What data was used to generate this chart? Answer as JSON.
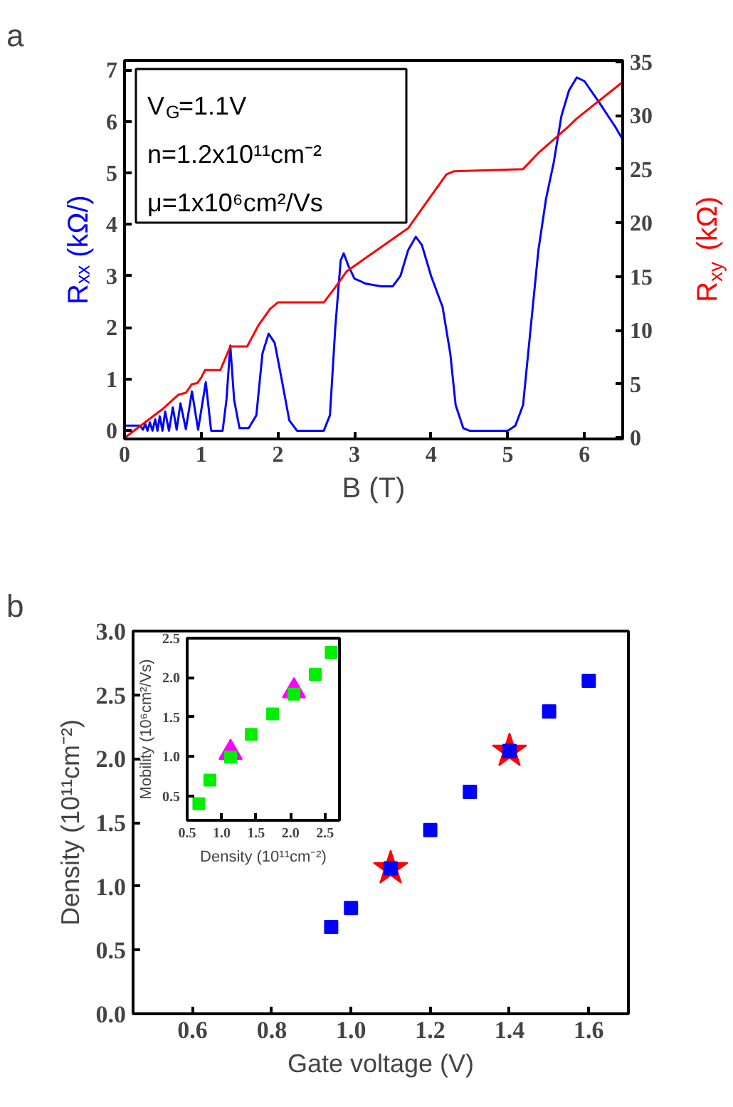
{
  "chart_data": [
    {
      "type": "line",
      "title": "a",
      "xlabel": "B (T)",
      "ylabel": "Rₓₓ (kΩ/)",
      "y2label": "R$_{xy}$ (kΩ)",
      "annotations": [
        "V$_{G}$=1.1V",
        "n=1.2x10¹¹cm⁻²",
        "μ=1x10⁶cm²/Vs"
      ],
      "xlim": [
        0,
        6.5
      ],
      "xticks": [
        0,
        1,
        2,
        3,
        4,
        5,
        6
      ],
      "ylim": [
        -0.16,
        7.18
      ],
      "yticks": [
        0,
        1,
        2,
        3,
        4,
        5,
        6,
        7
      ],
      "y2lim": [
        -0.1,
        35.1
      ],
      "y2ticks": [
        0,
        5,
        10,
        15,
        20,
        25,
        30,
        35
      ],
      "grid": false,
      "series": [
        {
          "color": "#0000ff",
          "x": [
            0,
            0.2,
            0.24,
            0.27,
            0.3,
            0.33,
            0.365,
            0.4,
            0.43,
            0.46,
            0.495,
            0.53,
            0.58,
            0.63,
            0.68,
            0.73,
            0.8,
            0.88,
            0.96,
            1.06,
            1.13,
            1.28,
            1.33,
            1.38,
            1.43,
            1.5,
            1.62,
            1.72,
            1.8,
            1.88,
            1.96,
            2.05,
            2.15,
            2.25,
            2.6,
            2.68,
            2.75,
            2.82,
            2.86,
            2.92,
            3.0,
            3.15,
            3.35,
            3.5,
            3.6,
            3.7,
            3.8,
            3.88,
            4.0,
            4.15,
            4.25,
            4.32,
            4.42,
            4.5,
            5.0,
            5.1,
            5.2,
            5.3,
            5.4,
            5.5,
            5.6,
            5.7,
            5.8,
            5.9,
            6.0,
            6.2,
            6.4,
            6.5
          ],
          "values": [
            0.1,
            0.1,
            0.02,
            0.13,
            0.0,
            0.16,
            0.0,
            0.22,
            0.0,
            0.28,
            0.0,
            0.37,
            0.0,
            0.45,
            0.02,
            0.53,
            0.03,
            0.76,
            0.02,
            0.94,
            0.0,
            0.0,
            0.6,
            1.65,
            0.6,
            0.05,
            0.05,
            0.3,
            1.5,
            1.88,
            1.7,
            1.0,
            0.2,
            0.0,
            0.0,
            0.3,
            2.0,
            3.3,
            3.44,
            3.2,
            2.95,
            2.85,
            2.8,
            2.8,
            3.0,
            3.5,
            3.76,
            3.6,
            3.0,
            2.4,
            1.5,
            0.5,
            0.05,
            0.0,
            0.0,
            0.1,
            0.5,
            2.0,
            3.5,
            4.5,
            5.2,
            6.1,
            6.6,
            6.85,
            6.78,
            6.35,
            5.9,
            5.65
          ]
        },
        {
          "color": "#ff0000",
          "axis": "y2",
          "x": [
            0,
            0.5,
            0.7,
            0.75,
            0.8,
            0.88,
            0.95,
            1.0,
            1.05,
            1.25,
            1.38,
            1.6,
            1.75,
            1.9,
            2.0,
            2.6,
            2.75,
            2.9,
            3.3,
            3.7,
            3.95,
            4.2,
            4.3,
            5.2,
            5.4,
            5.8,
            5.9,
            6.5
          ],
          "values": [
            0,
            2.7,
            4.0,
            4.1,
            4.2,
            5.0,
            5.1,
            5.6,
            6.3,
            6.3,
            8.5,
            8.5,
            10.5,
            12.0,
            12.6,
            12.6,
            14.0,
            15.5,
            17.5,
            19.5,
            22.0,
            24.5,
            24.8,
            25.0,
            26.5,
            29.0,
            29.7,
            33.1
          ]
        }
      ]
    },
    {
      "type": "scatter",
      "title": "b",
      "xlabel": "Gate voltage (V)",
      "ylabel": "Density (10¹¹cm⁻²)",
      "xlim": [
        0.45,
        1.7
      ],
      "xticks": [
        {
          "value": 0.6,
          "label": "0.6"
        },
        {
          "value": 0.8,
          "label": "0.8"
        },
        {
          "value": 1.0,
          "label": "1.0"
        },
        {
          "value": 1.2,
          "label": "1.2"
        },
        {
          "value": 1.4,
          "label": "1.4"
        },
        {
          "value": 1.6,
          "label": "1.6"
        }
      ],
      "ylim": [
        0,
        3.0
      ],
      "yticks": [
        {
          "value": 0,
          "label": "0.0"
        },
        {
          "value": 0.5,
          "label": "0.5"
        },
        {
          "value": 1.0,
          "label": "1.0"
        },
        {
          "value": 1.5,
          "label": "1.5"
        },
        {
          "value": 2.0,
          "label": "2.0"
        },
        {
          "value": 2.5,
          "label": "2.5"
        },
        {
          "value": 3.0,
          "label": "3.0"
        }
      ],
      "grid": false,
      "series": [
        {
          "color": "#ff0000",
          "marker": "star",
          "x": [
            1.1,
            1.4
          ],
          "values": [
            1.14,
            2.06
          ]
        },
        {
          "color": "#0000ff",
          "marker": "square",
          "x": [
            0.95,
            1.0,
            1.1,
            1.2,
            1.3,
            1.4,
            1.5,
            1.6
          ],
          "values": [
            0.68,
            0.83,
            1.14,
            1.44,
            1.74,
            2.06,
            2.37,
            2.61
          ]
        }
      ]
    },
    {
      "type": "scatter",
      "xlabel": "Density (10¹¹cm⁻²)",
      "ylabel": "Mobility (10⁶cm²/Vs)",
      "xlim": [
        0.5,
        2.71
      ],
      "xticks": [
        {
          "value": 0.5,
          "label": "0.5"
        },
        {
          "value": 1.0,
          "label": "1.0"
        },
        {
          "value": 1.5,
          "label": "1.5"
        },
        {
          "value": 2.0,
          "label": "2.0"
        },
        {
          "value": 2.5,
          "label": "2.5"
        }
      ],
      "ylim": [
        0.19,
        2.5
      ],
      "yticks": [
        {
          "value": 0.5,
          "label": "0.5"
        },
        {
          "value": 1.0,
          "label": "1.0"
        },
        {
          "value": 1.5,
          "label": "1.5"
        },
        {
          "value": 2.0,
          "label": "2.0"
        },
        {
          "value": 2.5,
          "label": "2.5"
        }
      ],
      "grid": false,
      "series": [
        {
          "color": "#ff00ff",
          "marker": "triangle",
          "x": [
            1.13,
            2.05
          ],
          "values": [
            1.05,
            1.83
          ]
        },
        {
          "color": "#00ee00",
          "marker": "square",
          "x": [
            0.67,
            0.83,
            1.13,
            1.43,
            1.74,
            2.05,
            2.36,
            2.59
          ],
          "values": [
            0.4,
            0.7,
            0.99,
            1.28,
            1.54,
            1.79,
            2.04,
            2.32
          ]
        }
      ]
    }
  ]
}
